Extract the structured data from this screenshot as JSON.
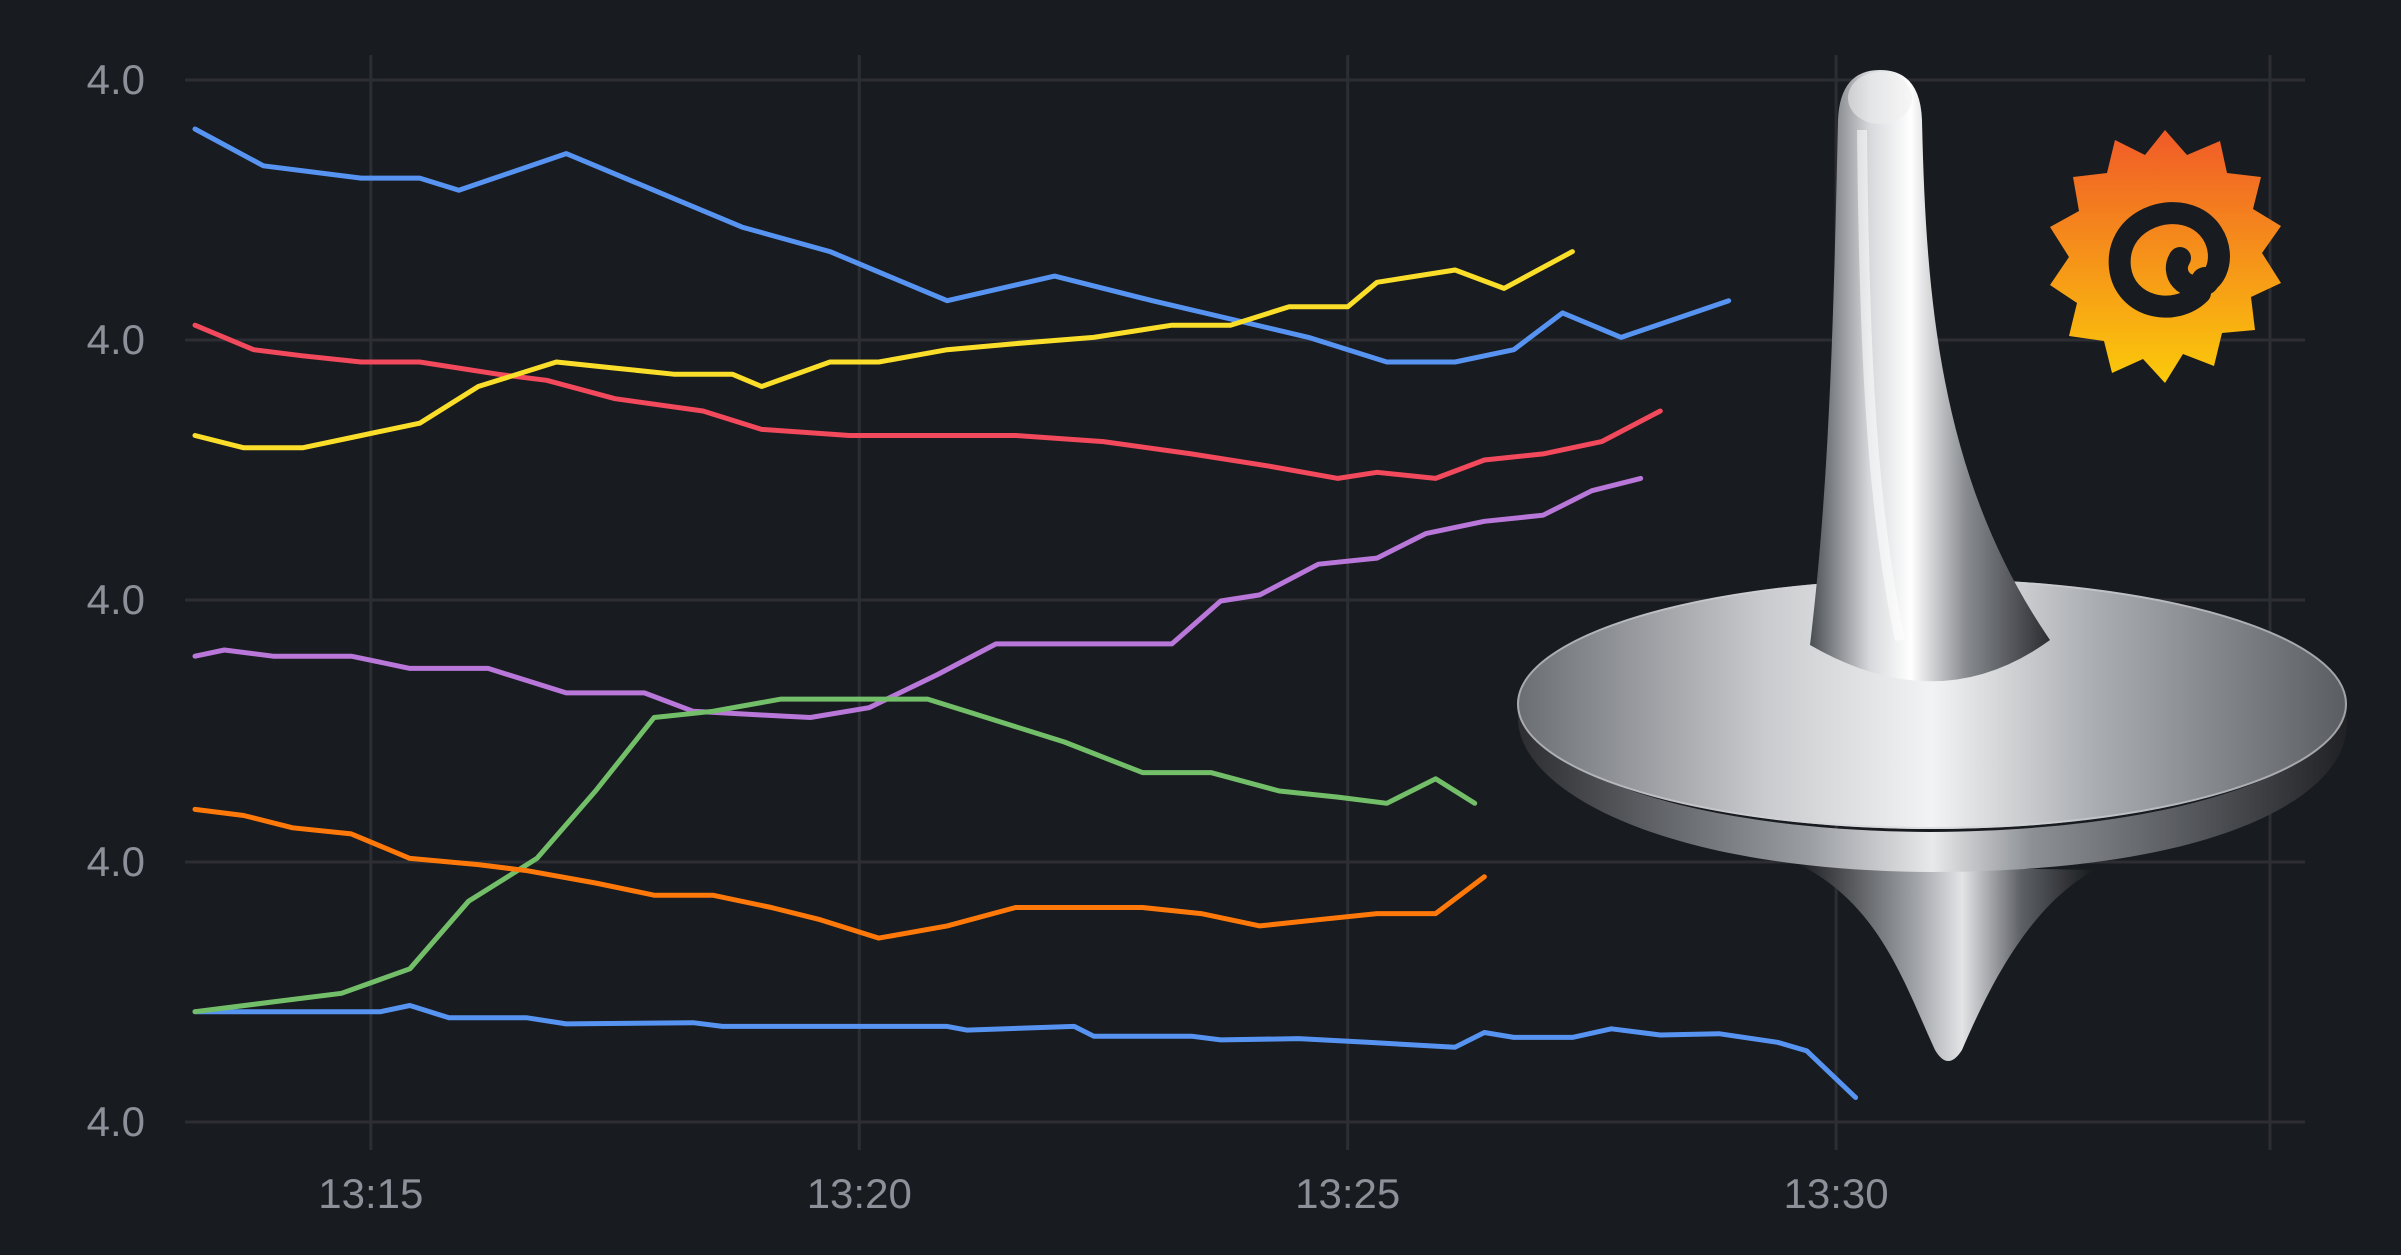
{
  "chart_data": {
    "type": "line",
    "title": "",
    "xlabel": "",
    "ylabel": "",
    "x_tick_labels": [
      "13:15",
      "13:20",
      "13:25",
      "13:30"
    ],
    "y_tick_labels": [
      "4.0",
      "4.0",
      "4.0",
      "4.0",
      "4.0"
    ],
    "x_range_minutes": [
      "13:13.2",
      "13:34.8"
    ],
    "grid": true,
    "legend": "none",
    "series": [
      {
        "color": "#5794f2",
        "points": [
          [
            13.2,
            4.24
          ],
          [
            14.0,
            4.24
          ],
          [
            15.1,
            4.24
          ],
          [
            15.4,
            4.245
          ],
          [
            15.8,
            4.235
          ],
          [
            16.6,
            4.235
          ],
          [
            17.0,
            4.23
          ],
          [
            18.3,
            4.231
          ],
          [
            18.6,
            4.228
          ],
          [
            19.5,
            4.228
          ],
          [
            20.9,
            4.228
          ],
          [
            21.1,
            4.225
          ],
          [
            22.2,
            4.228
          ],
          [
            22.4,
            4.22
          ],
          [
            23.4,
            4.22
          ],
          [
            23.7,
            4.217
          ],
          [
            24.5,
            4.218
          ],
          [
            25.2,
            4.215
          ],
          [
            26.1,
            4.211
          ],
          [
            26.4,
            4.223
          ],
          [
            26.7,
            4.219
          ],
          [
            27.3,
            4.219
          ],
          [
            27.7,
            4.226
          ],
          [
            28.2,
            4.221
          ],
          [
            28.8,
            4.222
          ],
          [
            29.4,
            4.215
          ],
          [
            29.7,
            4.208
          ],
          [
            30.2,
            4.17
          ]
        ]
      },
      {
        "color": "#5794f2",
        "points": [
          [
            13.2,
            4.96
          ],
          [
            13.9,
            4.93
          ],
          [
            14.9,
            4.92
          ],
          [
            15.5,
            4.92
          ],
          [
            15.9,
            4.91
          ],
          [
            17.0,
            4.94
          ],
          [
            17.9,
            4.91
          ],
          [
            18.8,
            4.88
          ],
          [
            19.7,
            4.86
          ],
          [
            20.9,
            4.82
          ],
          [
            22.0,
            4.84
          ],
          [
            23.0,
            4.82
          ],
          [
            23.8,
            4.805
          ],
          [
            24.6,
            4.79
          ],
          [
            25.4,
            4.77
          ],
          [
            26.1,
            4.77
          ],
          [
            26.7,
            4.78
          ],
          [
            27.2,
            4.81
          ],
          [
            27.8,
            4.79
          ],
          [
            28.9,
            4.82
          ]
        ]
      },
      {
        "color": "#f2495c",
        "points": [
          [
            13.2,
            4.8
          ],
          [
            13.8,
            4.78
          ],
          [
            14.3,
            4.775
          ],
          [
            14.9,
            4.77
          ],
          [
            15.5,
            4.77
          ],
          [
            16.3,
            4.76
          ],
          [
            16.8,
            4.755
          ],
          [
            17.5,
            4.74
          ],
          [
            18.4,
            4.73
          ],
          [
            19.0,
            4.715
          ],
          [
            19.9,
            4.71
          ],
          [
            21.0,
            4.71
          ],
          [
            21.6,
            4.71
          ],
          [
            22.5,
            4.705
          ],
          [
            23.4,
            4.695
          ],
          [
            24.2,
            4.685
          ],
          [
            24.9,
            4.675
          ],
          [
            25.3,
            4.68
          ],
          [
            25.9,
            4.675
          ],
          [
            26.4,
            4.69
          ],
          [
            27.0,
            4.695
          ],
          [
            27.6,
            4.705
          ],
          [
            28.2,
            4.73
          ]
        ]
      },
      {
        "color": "#fade2a",
        "points": [
          [
            13.2,
            4.71
          ],
          [
            13.7,
            4.7
          ],
          [
            14.3,
            4.7
          ],
          [
            14.9,
            4.71
          ],
          [
            15.5,
            4.72
          ],
          [
            16.1,
            4.75
          ],
          [
            16.9,
            4.77
          ],
          [
            17.5,
            4.765
          ],
          [
            18.1,
            4.76
          ],
          [
            18.7,
            4.76
          ],
          [
            19.0,
            4.75
          ],
          [
            19.7,
            4.77
          ],
          [
            20.2,
            4.77
          ],
          [
            20.9,
            4.78
          ],
          [
            21.6,
            4.785
          ],
          [
            22.4,
            4.79
          ],
          [
            23.2,
            4.8
          ],
          [
            23.8,
            4.8
          ],
          [
            24.4,
            4.815
          ],
          [
            25.0,
            4.815
          ],
          [
            25.3,
            4.835
          ],
          [
            25.7,
            4.84
          ],
          [
            26.1,
            4.845
          ],
          [
            26.6,
            4.83
          ],
          [
            27.3,
            4.86
          ]
        ]
      },
      {
        "color": "#b877d9",
        "points": [
          [
            13.2,
            4.53
          ],
          [
            13.5,
            4.535
          ],
          [
            14.0,
            4.53
          ],
          [
            14.8,
            4.53
          ],
          [
            15.4,
            4.52
          ],
          [
            16.2,
            4.52
          ],
          [
            17.0,
            4.5
          ],
          [
            17.8,
            4.5
          ],
          [
            18.3,
            4.485
          ],
          [
            19.0,
            4.482
          ],
          [
            19.5,
            4.48
          ],
          [
            20.1,
            4.488
          ],
          [
            20.8,
            4.515
          ],
          [
            21.4,
            4.54
          ],
          [
            21.9,
            4.54
          ],
          [
            22.5,
            4.54
          ],
          [
            23.2,
            4.54
          ],
          [
            23.7,
            4.575
          ],
          [
            24.1,
            4.58
          ],
          [
            24.7,
            4.605
          ],
          [
            25.3,
            4.61
          ],
          [
            25.8,
            4.63
          ],
          [
            26.4,
            4.64
          ],
          [
            27.0,
            4.645
          ],
          [
            27.5,
            4.665
          ],
          [
            28.0,
            4.675
          ]
        ]
      },
      {
        "color": "#73bf69",
        "points": [
          [
            13.2,
            4.24
          ],
          [
            14.0,
            4.248
          ],
          [
            14.7,
            4.255
          ],
          [
            15.4,
            4.275
          ],
          [
            16.0,
            4.33
          ],
          [
            16.7,
            4.365
          ],
          [
            17.3,
            4.42
          ],
          [
            17.9,
            4.48
          ],
          [
            18.5,
            4.485
          ],
          [
            19.2,
            4.495
          ],
          [
            20.0,
            4.495
          ],
          [
            20.7,
            4.495
          ],
          [
            21.3,
            4.48
          ],
          [
            22.1,
            4.46
          ],
          [
            22.9,
            4.435
          ],
          [
            23.6,
            4.435
          ],
          [
            24.3,
            4.42
          ],
          [
            24.9,
            4.415
          ],
          [
            25.4,
            4.41
          ],
          [
            25.9,
            4.43
          ],
          [
            26.3,
            4.41
          ]
        ]
      },
      {
        "color": "#ff780a",
        "points": [
          [
            13.2,
            4.405
          ],
          [
            13.7,
            4.4
          ],
          [
            14.2,
            4.39
          ],
          [
            14.8,
            4.385
          ],
          [
            15.4,
            4.365
          ],
          [
            16.1,
            4.36
          ],
          [
            16.6,
            4.355
          ],
          [
            17.3,
            4.345
          ],
          [
            17.9,
            4.335
          ],
          [
            18.5,
            4.335
          ],
          [
            19.1,
            4.325
          ],
          [
            19.6,
            4.315
          ],
          [
            20.2,
            4.3
          ],
          [
            20.9,
            4.31
          ],
          [
            21.6,
            4.325
          ],
          [
            22.2,
            4.325
          ],
          [
            22.9,
            4.325
          ],
          [
            23.5,
            4.32
          ],
          [
            24.1,
            4.31
          ],
          [
            24.7,
            4.315
          ],
          [
            25.3,
            4.32
          ],
          [
            25.9,
            4.32
          ],
          [
            26.4,
            4.35
          ]
        ]
      }
    ]
  },
  "colors": {
    "background": "#181b1f",
    "grid": "#2c2e33",
    "tick_text": "#8e9099"
  },
  "logo": "grafana-logo",
  "overlay": "spinning-top-image"
}
